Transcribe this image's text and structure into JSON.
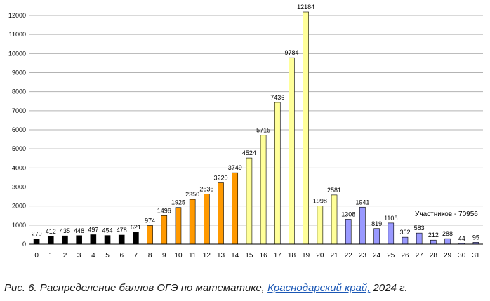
{
  "chart_data": {
    "type": "bar",
    "categories": [
      "0",
      "1",
      "2",
      "3",
      "4",
      "5",
      "6",
      "7",
      "8",
      "9",
      "10",
      "11",
      "12",
      "13",
      "14",
      "15",
      "16",
      "17",
      "18",
      "19",
      "20",
      "21",
      "22",
      "23",
      "24",
      "25",
      "26",
      "27",
      "28",
      "29",
      "30",
      "31"
    ],
    "values": [
      279,
      412,
      435,
      448,
      497,
      454,
      478,
      621,
      974,
      1496,
      1925,
      2350,
      2636,
      3220,
      3749,
      4524,
      5715,
      7436,
      9784,
      12184,
      1998,
      2581,
      1308,
      1941,
      819,
      1108,
      362,
      583,
      212,
      288,
      44,
      95
    ],
    "data_labels": [
      "279",
      "412",
      "435",
      "448",
      "497",
      "454",
      "478",
      "621",
      "974",
      "1496",
      "1925",
      "2350",
      "2636",
      "3220",
      "3749",
      "4524",
      "5715",
      "7436",
      "9784",
      "12184",
      "1998",
      "2581",
      "1308",
      "1941",
      "819",
      "1108",
      "362",
      "583",
      "212",
      "288",
      "44",
      "95"
    ],
    "bar_colors": [
      "#000000",
      "#000000",
      "#000000",
      "#000000",
      "#000000",
      "#000000",
      "#000000",
      "#000000",
      "#ff9900",
      "#ff9900",
      "#ff9900",
      "#ff9900",
      "#ff9900",
      "#ff9900",
      "#ff9900",
      "#ffff99",
      "#ffff99",
      "#ffff99",
      "#ffff99",
      "#ffff99",
      "#ffff99",
      "#ffff99",
      "#9999ff",
      "#9999ff",
      "#9999ff",
      "#9999ff",
      "#9999ff",
      "#9999ff",
      "#9999ff",
      "#9999ff",
      "#9999ff",
      "#9999ff"
    ],
    "y_ticks": [
      "0",
      "1000",
      "2000",
      "3000",
      "4000",
      "5000",
      "6000",
      "7000",
      "8000",
      "9000",
      "10000",
      "11000",
      "12000"
    ],
    "ylim": [
      0,
      12000
    ],
    "grid": true,
    "legend": "none",
    "annotation": "Участников - 70956"
  },
  "caption": {
    "prefix": "Рис. 6. Распределение баллов ОГЭ по математике, ",
    "link": "Краснодарский край,",
    "suffix": " 2024 г."
  }
}
